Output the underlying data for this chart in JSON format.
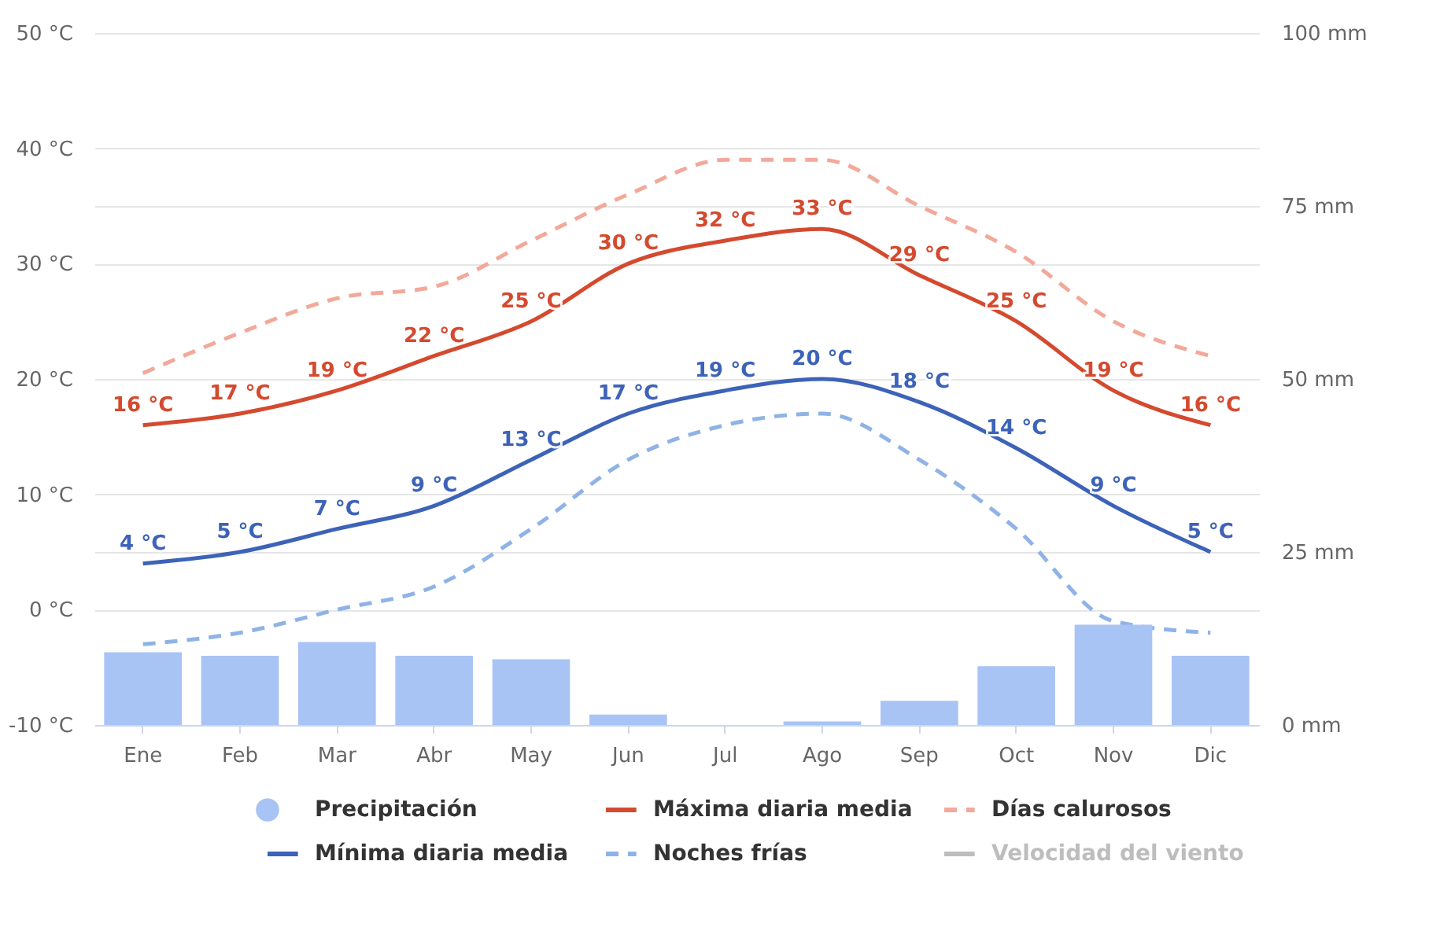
{
  "chart_data": {
    "type": "line",
    "categories": [
      "Ene",
      "Feb",
      "Mar",
      "Abr",
      "May",
      "Jun",
      "Jul",
      "Ago",
      "Sep",
      "Oct",
      "Nov",
      "Dic"
    ],
    "series": [
      {
        "name": "Precipitación",
        "type": "bar",
        "axis": "y2",
        "color": "#a8c4f5",
        "values": [
          10.5,
          10,
          12,
          10,
          9.5,
          1.5,
          0,
          0.5,
          3.5,
          8.5,
          14.5,
          10
        ]
      },
      {
        "name": "Máxima diaria media",
        "color": "#d44a2f",
        "values": [
          16,
          17,
          19,
          22,
          25,
          30,
          32,
          33,
          29,
          25,
          19,
          16
        ],
        "value_labels": [
          "16 °C",
          "17 °C",
          "19 °C",
          "22 °C",
          "25 °C",
          "30 °C",
          "32 °C",
          "33 °C",
          "29 °C",
          "25 °C",
          "19 °C",
          "16 °C"
        ]
      },
      {
        "name": "Días calurosos",
        "line_style": "dashed",
        "color": "#f2a99a",
        "values": [
          20.5,
          24,
          27,
          28,
          32,
          36,
          39,
          39,
          35,
          31,
          25,
          22
        ]
      },
      {
        "name": "Mínima diaria media",
        "color": "#3d63b8",
        "values": [
          4,
          5,
          7,
          9,
          13,
          17,
          19,
          20,
          18,
          14,
          9,
          5
        ],
        "value_labels": [
          "4 °C",
          "5 °C",
          "7 °C",
          "9 °C",
          "13 °C",
          "17 °C",
          "19 °C",
          "20 °C",
          "18 °C",
          "14 °C",
          "9 °C",
          "5 °C"
        ]
      },
      {
        "name": "Noches frías",
        "line_style": "dashed",
        "color": "#8fb3e6",
        "values": [
          -3,
          -2,
          0,
          2,
          7,
          13,
          16,
          17,
          13,
          7,
          -1,
          -2
        ]
      },
      {
        "name": "Velocidad del viento",
        "color": "#bdbdbd",
        "values": [
          null,
          null,
          null,
          null,
          null,
          null,
          null,
          null,
          null,
          null,
          null,
          null
        ]
      }
    ],
    "ylim": [
      -10,
      50
    ],
    "yticks": [
      {
        "value": -10,
        "label": "-10 °C"
      },
      {
        "value": 0,
        "label": "0 °C"
      },
      {
        "value": 10,
        "label": "10 °C"
      },
      {
        "value": 20,
        "label": "20 °C"
      },
      {
        "value": 30,
        "label": "30 °C"
      },
      {
        "value": 40,
        "label": "40 °C"
      },
      {
        "value": 50,
        "label": "50 °C"
      }
    ],
    "y2lim": [
      0,
      100
    ],
    "y2ticks": [
      {
        "value": 0,
        "label": "0 mm"
      },
      {
        "value": 25,
        "label": "25 mm"
      },
      {
        "value": 50,
        "label": "50 mm"
      },
      {
        "value": 75,
        "label": "75 mm"
      },
      {
        "value": 100,
        "label": "100 mm"
      }
    ],
    "grid": "y",
    "legend": "bottom"
  }
}
